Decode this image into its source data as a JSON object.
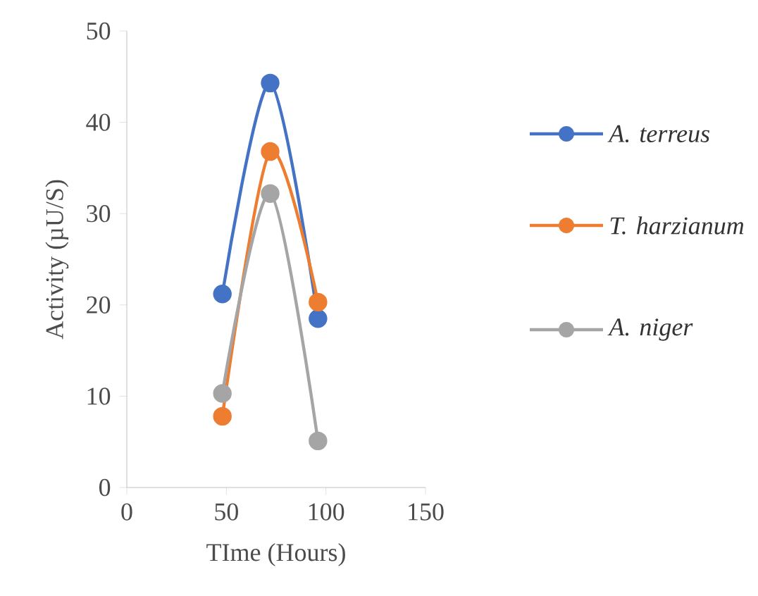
{
  "chart_data": {
    "type": "line",
    "xlabel": "TIme (Hours)",
    "ylabel": "Activity (µU/S)",
    "xlim": [
      0,
      150
    ],
    "xticks": [
      0,
      50,
      100,
      150
    ],
    "ylim": [
      0,
      50
    ],
    "yticks": [
      0,
      10,
      20,
      30,
      40,
      50
    ],
    "grid": false,
    "legend": "right",
    "marker": "circle",
    "line_style": "solid",
    "series": [
      {
        "name": "A. terreus",
        "color": "#4472c4",
        "x": [
          48,
          72,
          96
        ],
        "values": [
          21.2,
          44.3,
          18.5
        ]
      },
      {
        "name": "T. harzianum",
        "color": "#ed7d31",
        "x": [
          48,
          72,
          96
        ],
        "values": [
          7.8,
          36.8,
          20.3
        ]
      },
      {
        "name": "A. niger",
        "color": "#a5a5a5",
        "x": [
          48,
          72,
          96
        ],
        "values": [
          10.3,
          32.2,
          5.1
        ]
      }
    ]
  }
}
